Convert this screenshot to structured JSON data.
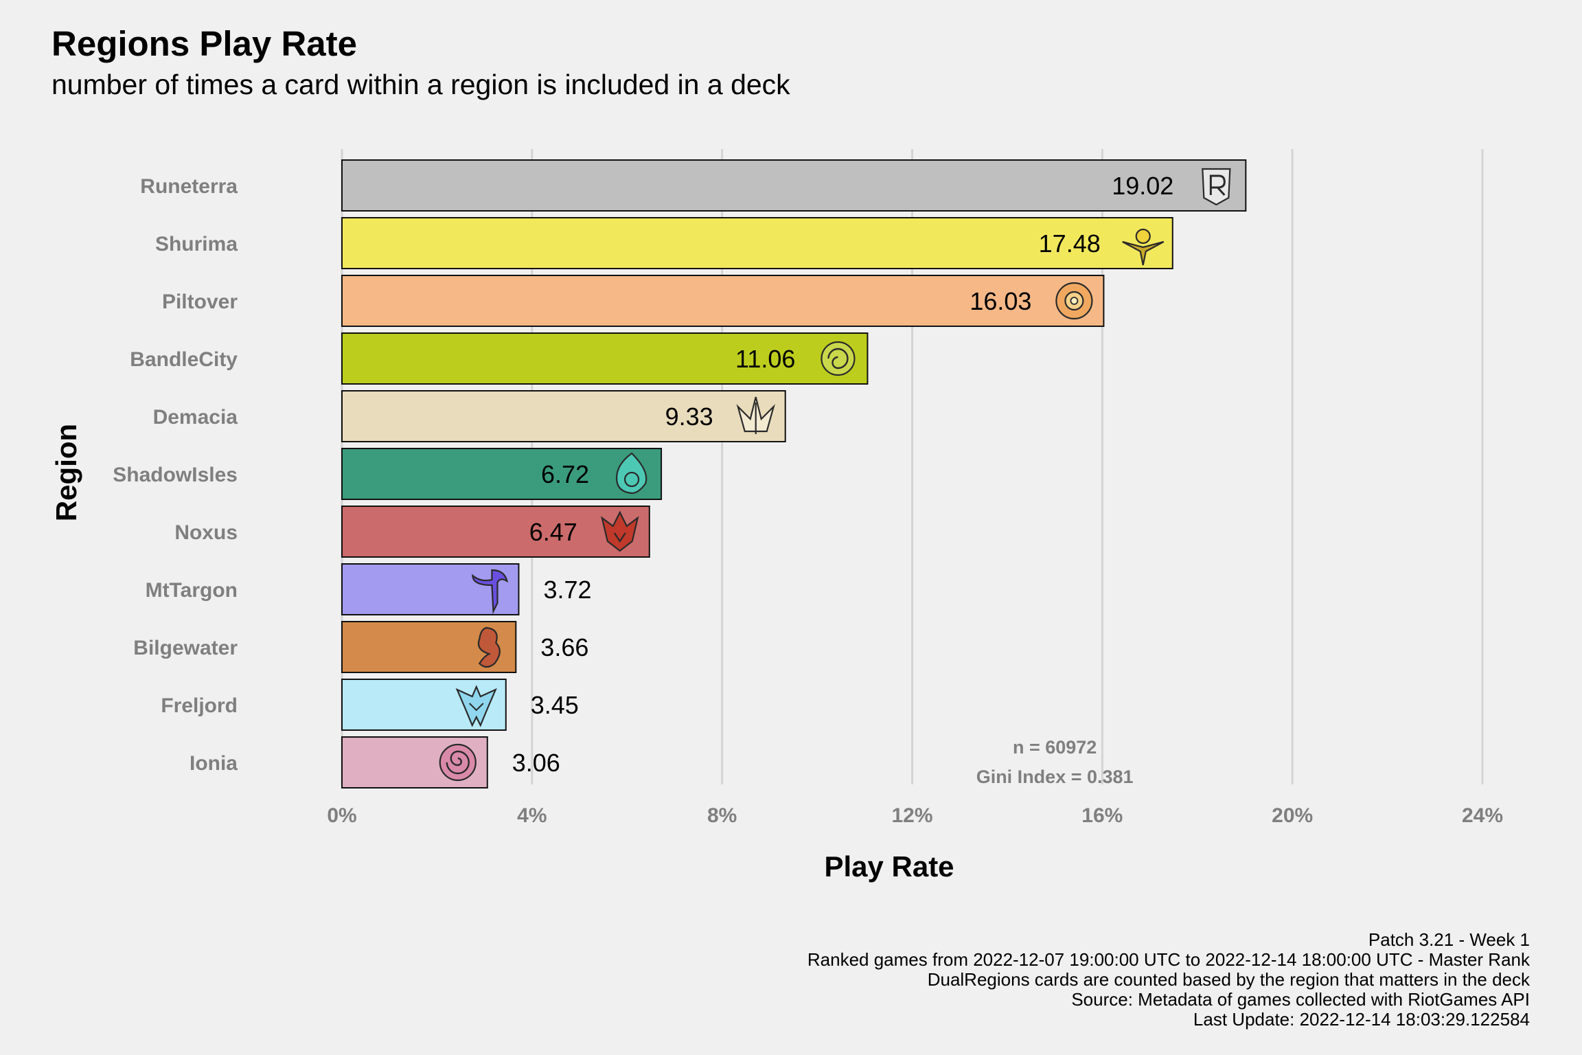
{
  "chart_data": {
    "type": "bar",
    "orientation": "horizontal",
    "title": "Regions Play Rate",
    "subtitle": "number of times a card within a region is included in a deck",
    "xlabel": "Play Rate",
    "ylabel": "Region",
    "xlim": [
      0,
      24
    ],
    "x_ticks": [
      "0%",
      "4%",
      "8%",
      "12%",
      "16%",
      "20%",
      "24%"
    ],
    "x_tick_values": [
      0,
      4,
      8,
      12,
      16,
      20,
      24
    ],
    "grid": "vertical major",
    "categories": [
      "Runeterra",
      "Shurima",
      "Piltover",
      "BandleCity",
      "Demacia",
      "ShadowIsles",
      "Noxus",
      "MtTargon",
      "Bilgewater",
      "Freljord",
      "Ionia"
    ],
    "values": [
      19.02,
      17.48,
      16.03,
      11.06,
      9.33,
      6.72,
      6.47,
      3.72,
      3.66,
      3.45,
      3.06
    ],
    "value_labels": [
      "19.02",
      "17.48",
      "16.03",
      "11.06",
      "9.33",
      "6.72",
      "6.47",
      "3.72",
      "3.66",
      "3.45",
      "3.06"
    ],
    "colors": [
      "#bfbfbf",
      "#f2e85c",
      "#f5b886",
      "#bccd1d",
      "#e8dcbc",
      "#3a9c7c",
      "#cc6b6b",
      "#a39bf0",
      "#d48a4a",
      "#b8eaf7",
      "#e0b0c2"
    ],
    "icons": [
      "runeterra-icon",
      "shurima-icon",
      "piltover-icon",
      "bandlecity-icon",
      "demacia-icon",
      "shadowisles-icon",
      "noxus-icon",
      "mttargon-icon",
      "bilgewater-icon",
      "freljord-icon",
      "ionia-icon"
    ],
    "annotation": [
      "n = 60972",
      "Gini Index = 0.381"
    ],
    "annotation_x": 15
  },
  "caption": [
    "Patch 3.21 - Week 1",
    "Ranked games from 2022-12-07 19:00:00 UTC to 2022-12-14 18:00:00 UTC - Master Rank",
    "DualRegions cards are counted based by the region that matters in the deck",
    "Source: Metadata of games collected with RiotGames API",
    "Last Update: 2022-12-14 18:03:29.122584"
  ]
}
